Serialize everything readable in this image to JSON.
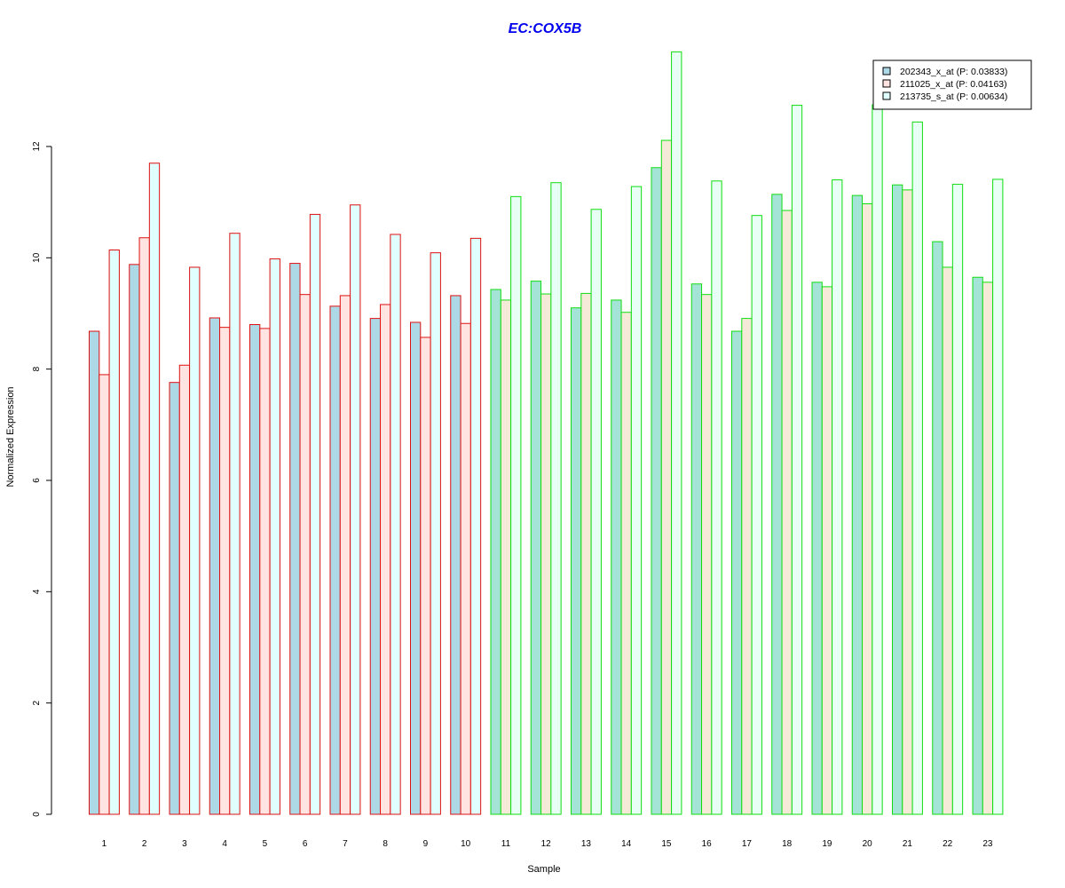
{
  "chart_data": {
    "type": "bar",
    "title": "EC:COX5B",
    "xlabel": "Sample",
    "ylabel": "Normalized Expression",
    "ylim": [
      0,
      13.8
    ],
    "yticks": [
      0,
      2,
      4,
      6,
      8,
      10,
      12
    ],
    "grid": false,
    "legend_position": "top-right",
    "categories": [
      "1",
      "2",
      "3",
      "4",
      "5",
      "6",
      "7",
      "8",
      "9",
      "10",
      "11",
      "12",
      "13",
      "14",
      "15",
      "16",
      "17",
      "18",
      "19",
      "20",
      "21",
      "22",
      "23"
    ],
    "group_outline": [
      "red",
      "red",
      "red",
      "red",
      "red",
      "red",
      "red",
      "red",
      "red",
      "red",
      "green",
      "green",
      "green",
      "green",
      "green",
      "green",
      "green",
      "green",
      "green",
      "green",
      "green",
      "green",
      "green"
    ],
    "series": [
      {
        "name": "202343_x_at (P: 0.03833)",
        "values": [
          8.68,
          9.88,
          7.76,
          8.92,
          8.8,
          9.9,
          9.13,
          8.91,
          8.84,
          9.32,
          9.43,
          9.58,
          9.1,
          9.24,
          11.62,
          9.53,
          8.68,
          11.14,
          9.56,
          11.12,
          11.31,
          10.29,
          9.65
        ]
      },
      {
        "name": "211025_x_at (P: 0.04163)",
        "values": [
          7.9,
          10.36,
          8.07,
          8.75,
          8.73,
          9.34,
          9.32,
          9.16,
          8.57,
          8.82,
          9.24,
          9.35,
          9.36,
          9.02,
          12.11,
          9.34,
          8.91,
          10.85,
          9.48,
          10.97,
          11.22,
          9.83,
          9.56
        ]
      },
      {
        "name": "213735_s_at (P: 0.00634)",
        "values": [
          10.14,
          11.7,
          9.83,
          10.44,
          9.98,
          10.78,
          10.95,
          10.42,
          10.09,
          10.35,
          11.1,
          11.35,
          10.87,
          11.28,
          13.7,
          11.38,
          10.76,
          12.74,
          11.4,
          12.75,
          12.44,
          11.32,
          11.41
        ]
      }
    ],
    "colors": {
      "title": "#0000ee",
      "outline_red": "#dd1111",
      "outline_green": "#11dd11",
      "axis": "#000000",
      "fill_red_group": [
        "#add8e6",
        "#ffe4e1",
        "#e0ffff"
      ],
      "fill_green_group": [
        "#a3e4d7",
        "#f5ead7",
        "#e8fff5"
      ],
      "legend_fills": [
        "#add8e6",
        "#ffe4e1",
        "#e0ffff"
      ]
    }
  }
}
